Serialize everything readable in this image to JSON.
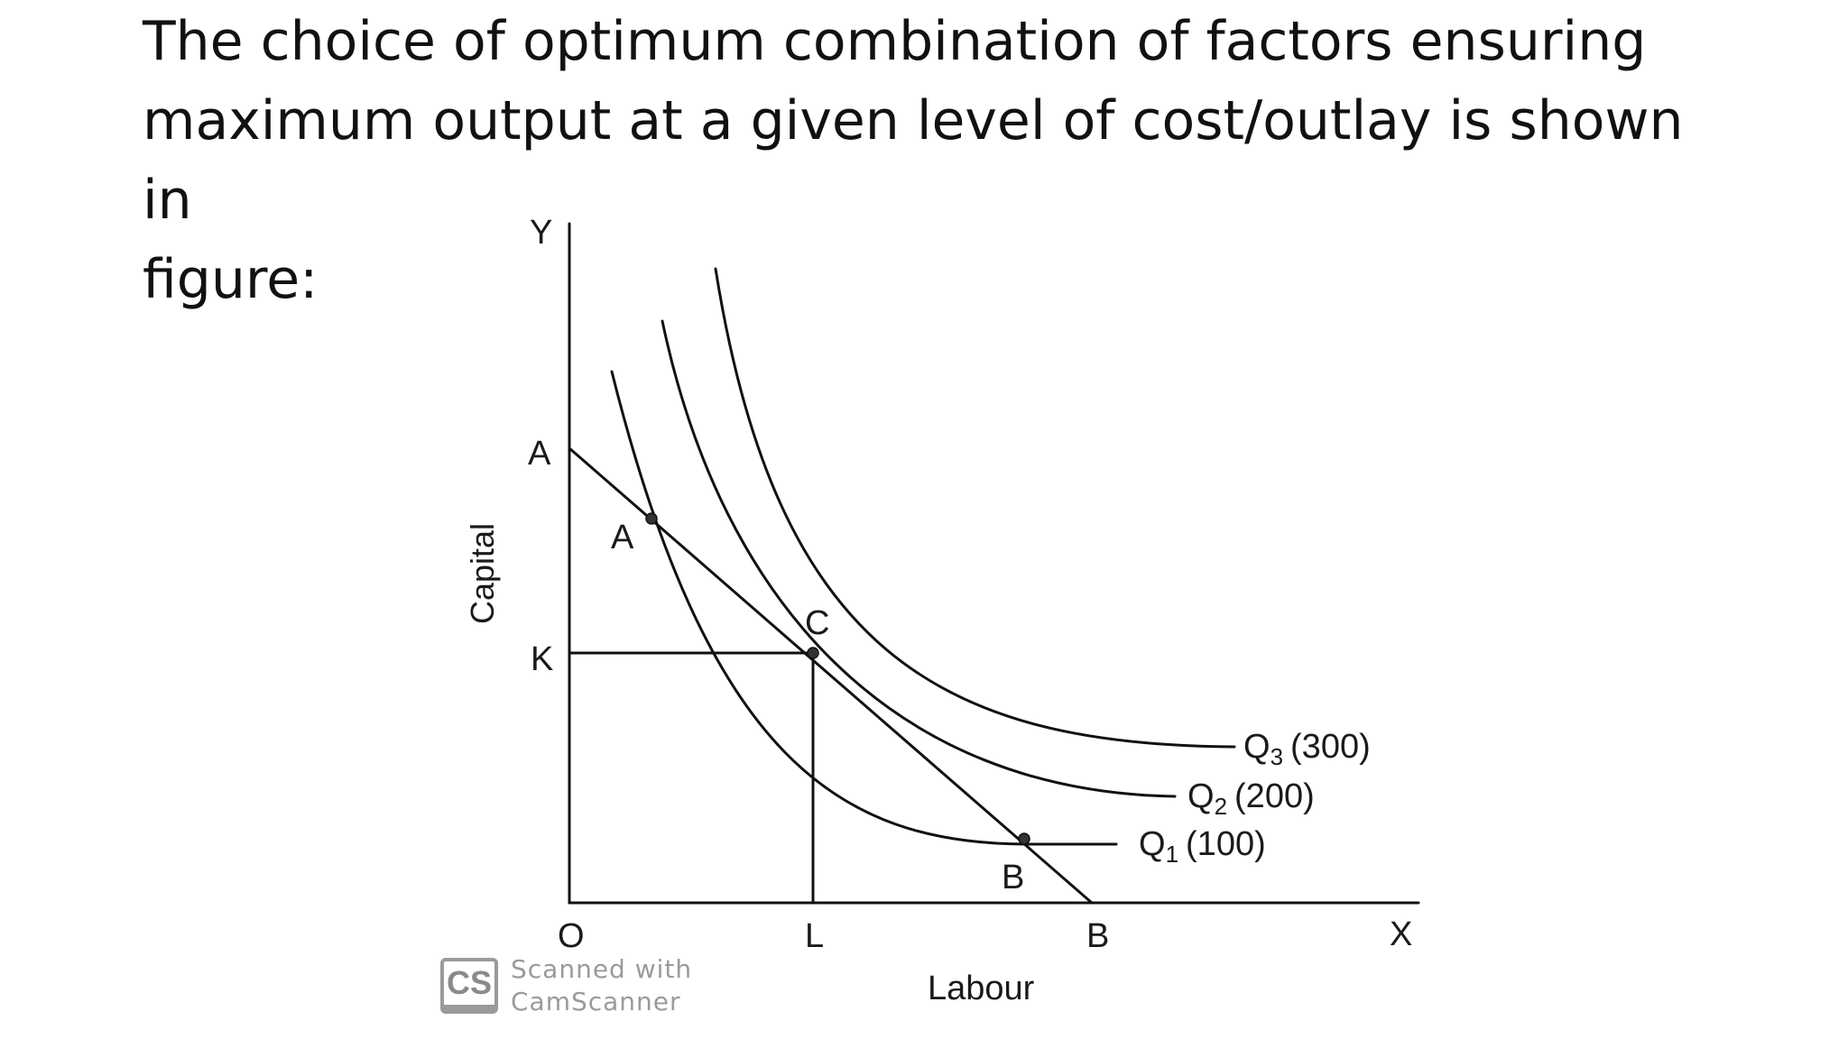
{
  "slide": {
    "text": "The choice of optimum combination of factors ensuring\nmaximum output at a given level of cost/outlay is shown in\nfigure:"
  },
  "diagram": {
    "y_axis_letter": "Y",
    "x_axis_letter": "X",
    "origin": "O",
    "y_axis_title": "Capital",
    "x_axis_title": "Labour",
    "axis_points": {
      "A": "A",
      "K": "K",
      "L": "L",
      "B": "B"
    },
    "curve_points": {
      "A": "A",
      "C": "C",
      "B": "B"
    },
    "isoquants": [
      {
        "symbol": "Q",
        "sub": "1",
        "value": "(100)"
      },
      {
        "symbol": "Q",
        "sub": "2",
        "value": "(200)"
      },
      {
        "symbol": "Q",
        "sub": "3",
        "value": "(300)"
      }
    ]
  },
  "watermark": {
    "badge": "CS",
    "line1": "Scanned with",
    "line2": "CamScanner"
  }
}
